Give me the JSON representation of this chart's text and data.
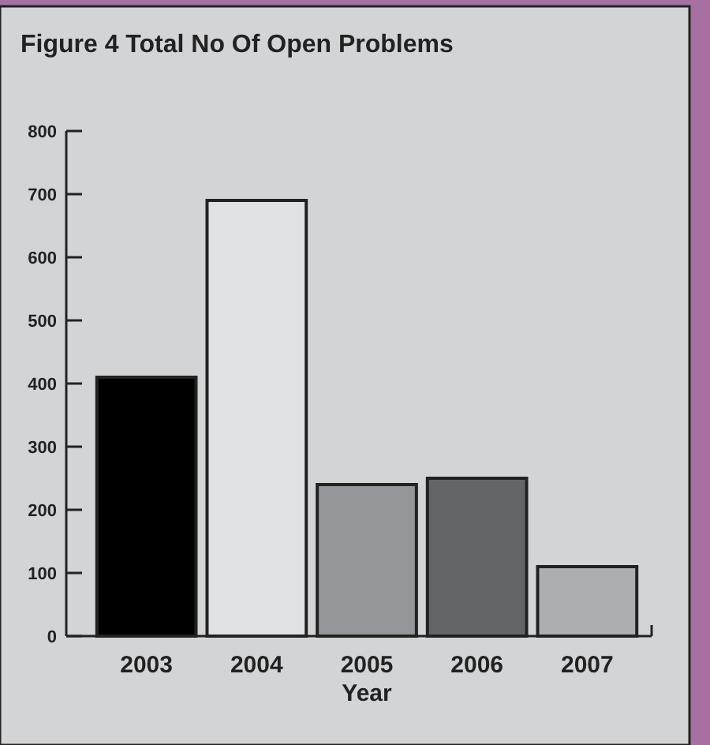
{
  "chart_data": {
    "type": "bar",
    "title": "Figure 4 Total No Of Open Problems",
    "xlabel": "Year",
    "categories": [
      "2003",
      "2004",
      "2005",
      "2006",
      "2007"
    ],
    "values": [
      410,
      690,
      240,
      250,
      110
    ],
    "colors": [
      "#000000",
      "#e1e2e4",
      "#959699",
      "#646567",
      "#adaeb0"
    ],
    "ylim": [
      0,
      800
    ],
    "yticks": [
      0,
      100,
      200,
      300,
      400,
      500,
      600,
      700,
      800
    ]
  }
}
